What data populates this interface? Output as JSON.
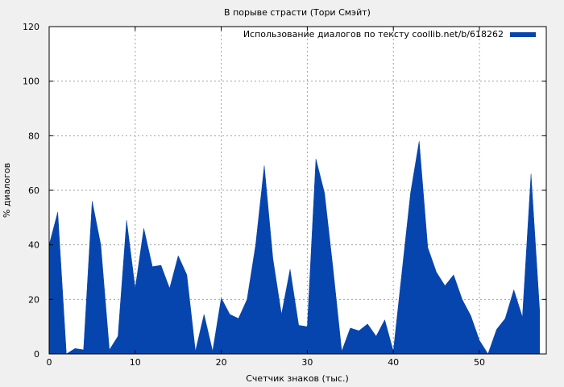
{
  "chart_data": {
    "type": "area",
    "title": "В порыве страсти (Тори Смэйт)",
    "xlabel": "Счетчик знаков (тыс.)",
    "ylabel": "% диалогов",
    "xlim": [
      0,
      58
    ],
    "ylim": [
      0,
      120
    ],
    "xticks": [
      0,
      10,
      20,
      30,
      40,
      50
    ],
    "yticks": [
      0,
      20,
      40,
      60,
      80,
      100,
      120
    ],
    "grid": true,
    "legend_position": "top-right",
    "series": [
      {
        "name": "Использование диалогов по тексту coollib.net/b/618262",
        "color": "#0645ad",
        "x": [
          0,
          1,
          2,
          3,
          4,
          5,
          6,
          7,
          8,
          9,
          10,
          11,
          12,
          13,
          14,
          15,
          16,
          17,
          18,
          19,
          20,
          21,
          22,
          23,
          24,
          25,
          26,
          27,
          28,
          29,
          30,
          31,
          32,
          33,
          34,
          35,
          36,
          37,
          38,
          39,
          40,
          41,
          42,
          43,
          44,
          45,
          46,
          47,
          48,
          49,
          50,
          51,
          52,
          53,
          54,
          55,
          56,
          57
        ],
        "values": [
          40,
          52,
          0,
          2,
          1.5,
          56,
          40,
          1.5,
          6.5,
          49,
          24,
          46,
          32,
          32.5,
          24,
          36,
          29,
          1,
          14.5,
          1,
          20.5,
          14.5,
          13,
          20,
          40,
          69,
          35,
          14.5,
          31,
          10.5,
          10,
          71.5,
          59,
          31,
          1,
          9.5,
          8.5,
          11,
          6.5,
          12.5,
          1,
          30,
          59,
          78,
          39,
          30,
          25,
          29,
          20,
          14,
          5,
          0,
          9,
          13,
          23.5,
          13.5,
          66,
          16
        ]
      }
    ]
  }
}
